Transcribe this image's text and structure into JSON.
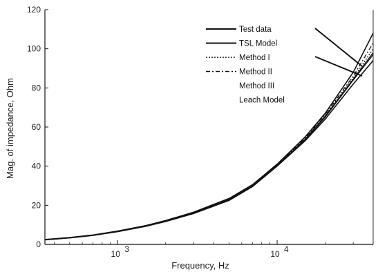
{
  "chart_data": {
    "type": "line",
    "xlabel": "Frequency, Hz",
    "ylabel": "Mag. of impedance, Ohm",
    "x_scale": "log",
    "xlim": [
      350,
      40000
    ],
    "ylim": [
      0,
      120
    ],
    "y_ticks": [
      "0",
      "20",
      "40",
      "60",
      "80",
      "100",
      "120"
    ],
    "x_ticks": [
      {
        "value": 1000,
        "base": "10",
        "exp": "3"
      },
      {
        "value": 10000,
        "base": "10",
        "exp": "4"
      }
    ],
    "legend_position": "top-right",
    "grid": false,
    "series": [
      {
        "name": "Test data",
        "style": "solid",
        "x": [
          350,
          500,
          700,
          1000,
          1500,
          2000,
          3000,
          5000,
          7000,
          10000,
          15000,
          20000,
          30000,
          40000
        ],
        "y": [
          2.5,
          3.5,
          4.8,
          6.8,
          9.6,
          12.2,
          16.5,
          23.5,
          30.5,
          41,
          55,
          67,
          88,
          108
        ]
      },
      {
        "name": "TSL Model",
        "style": "solid",
        "x": [
          350,
          500,
          700,
          1000,
          1500,
          2000,
          3000,
          5000,
          7000,
          10000,
          15000,
          20000,
          30000,
          40000
        ],
        "y": [
          2.3,
          3.3,
          4.6,
          6.5,
          9.2,
          11.7,
          15.8,
          22.5,
          29.5,
          40,
          53,
          64,
          82,
          94
        ]
      },
      {
        "name": "Method I",
        "style": "dotted",
        "x": [
          350,
          500,
          700,
          1000,
          1500,
          2000,
          3000,
          5000,
          7000,
          10000,
          15000,
          20000,
          30000,
          40000
        ],
        "y": [
          2.4,
          3.4,
          4.7,
          6.6,
          9.4,
          12,
          16.2,
          23,
          30,
          40.5,
          54,
          66,
          85,
          100
        ]
      },
      {
        "name": "Method II",
        "style": "dashdot",
        "x": [
          350,
          500,
          700,
          1000,
          1500,
          2000,
          3000,
          5000,
          7000,
          10000,
          15000,
          20000,
          30000,
          40000
        ],
        "y": [
          2.4,
          3.4,
          4.7,
          6.7,
          9.5,
          12.1,
          16.3,
          23.2,
          30.2,
          40.7,
          54.5,
          66.5,
          86,
          103
        ]
      },
      {
        "name": "Method III",
        "style": "none",
        "x": [
          350,
          500,
          700,
          1000,
          1500,
          2000,
          3000,
          5000,
          7000,
          10000,
          15000,
          20000,
          30000,
          40000
        ],
        "y": [
          2.3,
          3.3,
          4.6,
          6.6,
          9.3,
          11.8,
          16,
          22.8,
          29.8,
          40.2,
          53.5,
          65,
          84,
          97
        ]
      },
      {
        "name": "Leach Model",
        "style": "none",
        "x": [
          350,
          500,
          700,
          1000,
          1500,
          2000,
          3000,
          5000,
          7000,
          10000,
          15000,
          20000,
          30000,
          40000
        ],
        "y": [
          2.3,
          3.3,
          4.6,
          6.6,
          9.3,
          11.9,
          16.1,
          22.9,
          29.9,
          40.3,
          53.8,
          65.5,
          84.5,
          98
        ]
      }
    ]
  }
}
